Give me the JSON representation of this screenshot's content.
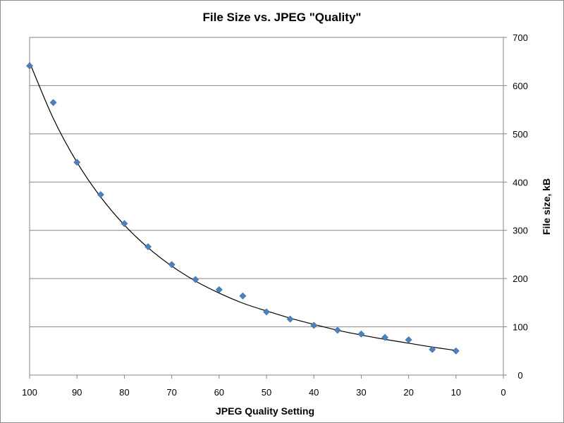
{
  "chart_data": {
    "type": "scatter",
    "title": "File Size vs. JPEG \"Quality\"",
    "xlabel": "JPEG Quality Setting",
    "ylabel": "File size, kB",
    "xlim": [
      100,
      0
    ],
    "x_reversed": true,
    "ylim": [
      0,
      700
    ],
    "x_ticks": [
      100,
      90,
      80,
      70,
      60,
      50,
      40,
      30,
      20,
      10,
      0
    ],
    "y_ticks": [
      0,
      100,
      200,
      300,
      400,
      500,
      600,
      700
    ],
    "y_axis_side": "right",
    "grid": "horizontal",
    "legend": "none",
    "series": [
      {
        "x": [
          100,
          95,
          90,
          85,
          80,
          75,
          70,
          65,
          60,
          55,
          50,
          45,
          40,
          35,
          30,
          25,
          20,
          15,
          10
        ],
        "y": [
          641,
          565,
          441,
          374,
          314,
          266,
          229,
          198,
          177,
          164,
          131,
          116,
          103,
          93,
          85,
          78,
          73,
          53,
          50
        ],
        "marker": "diamond",
        "color": "#4f81bd"
      }
    ],
    "trendline": {
      "color": "#000000",
      "x": [
        100,
        95,
        90,
        85,
        80,
        75,
        70,
        65,
        60,
        55,
        50,
        45,
        40,
        35,
        30,
        25,
        20,
        15,
        10
      ],
      "y": [
        648,
        532,
        441,
        369,
        311,
        264,
        226,
        195,
        170,
        149,
        133,
        118,
        105,
        93,
        83,
        74,
        66,
        58,
        51
      ]
    },
    "colors": {
      "gridline": "#868686",
      "axis": "#868686",
      "marker": "#4f81bd",
      "trendline": "#000000"
    }
  }
}
